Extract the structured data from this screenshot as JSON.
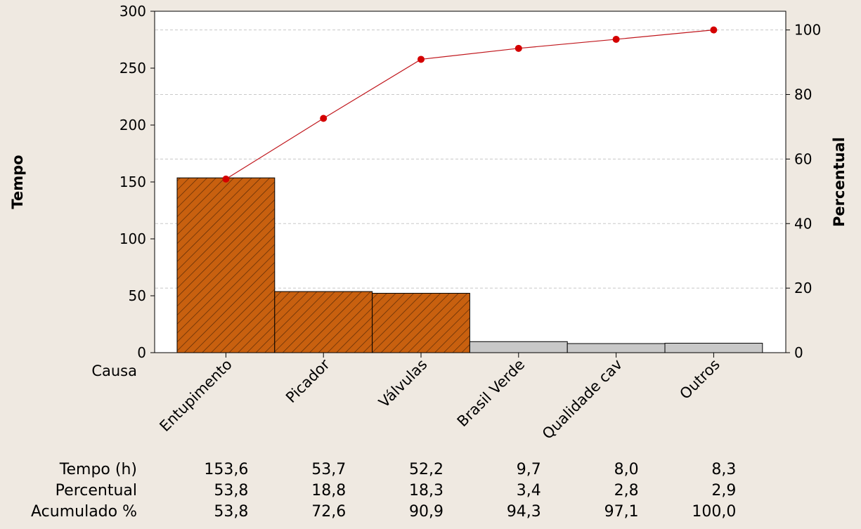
{
  "chart_data": {
    "type": "pareto",
    "categories": [
      "Entupimento",
      "Picador",
      "Válvulas",
      "Brasil Verde",
      "Qualidade cav",
      "Outros"
    ],
    "series": [
      {
        "name": "Tempo (h)",
        "type": "bar",
        "axis": "left",
        "values": [
          153.6,
          53.7,
          52.2,
          9.7,
          8.0,
          8.3
        ]
      },
      {
        "name": "Acumulado %",
        "type": "line",
        "axis": "right",
        "values": [
          53.8,
          72.6,
          90.9,
          94.3,
          97.1,
          100.0
        ]
      }
    ],
    "highlighted_categories": [
      "Entupimento",
      "Picador",
      "Válvulas"
    ],
    "ylabel": "Tempo",
    "y2label": "Percentual",
    "xlabel": "Causa",
    "ylim": [
      0,
      300
    ],
    "y2lim": [
      0,
      105.8
    ],
    "yticks": [
      0,
      50,
      100,
      150,
      200,
      250,
      300
    ],
    "y2ticks": [
      0,
      20,
      40,
      60,
      80,
      100
    ],
    "grid": "horizontal dashed at right-axis ticks",
    "colors": {
      "highlight_bar": "#c8600f",
      "hatch": "#5a2a06",
      "other_bar": "#c8c8c8",
      "line": "#c0161c",
      "marker": "#d40000",
      "plot_bg": "#ffffff",
      "page_bg": "#efe9e1"
    },
    "table": {
      "rows": [
        {
          "label": "Tempo (h)",
          "values": [
            "153,6",
            "53,7",
            "52,2",
            "9,7",
            "8,0",
            "8,3"
          ]
        },
        {
          "label": "Percentual",
          "values": [
            "53,8",
            "18,8",
            "18,3",
            "3,4",
            "2,8",
            "2,9"
          ]
        },
        {
          "label": "Acumulado %",
          "values": [
            "53,8",
            "72,6",
            "90,9",
            "94,3",
            "97,1",
            "100,0"
          ]
        }
      ]
    }
  }
}
